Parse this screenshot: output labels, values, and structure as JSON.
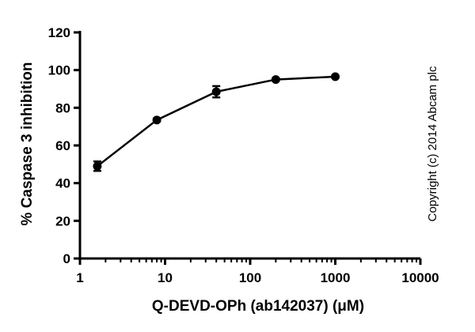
{
  "chart_data": {
    "type": "line",
    "title": "",
    "xlabel": "Q-DEVD-OPh (ab142037) (μM)",
    "ylabel": "% Caspase 3 inhibition",
    "xscale": "log",
    "xlim": [
      1,
      10000
    ],
    "ylim": [
      0,
      120
    ],
    "x_ticks": [
      1,
      10,
      100,
      1000,
      10000
    ],
    "x_tick_labels": [
      "1",
      "10",
      "100",
      "1000",
      "10000"
    ],
    "y_ticks": [
      0,
      20,
      40,
      60,
      80,
      100,
      120
    ],
    "y_tick_labels": [
      "0",
      "20",
      "40",
      "60",
      "80",
      "100",
      "120"
    ],
    "grid": false,
    "series": [
      {
        "x": [
          1.6,
          8,
          40,
          200,
          1000
        ],
        "y": [
          49,
          73.5,
          88.5,
          95,
          96.5
        ],
        "error": [
          2.5,
          0.8,
          3,
          0.8,
          0.6
        ],
        "marker": "circle",
        "color": "#000000"
      }
    ],
    "annotations": [
      {
        "text": "Copyright (c) 2014 Abcam plc",
        "orientation": "vertical"
      }
    ]
  }
}
